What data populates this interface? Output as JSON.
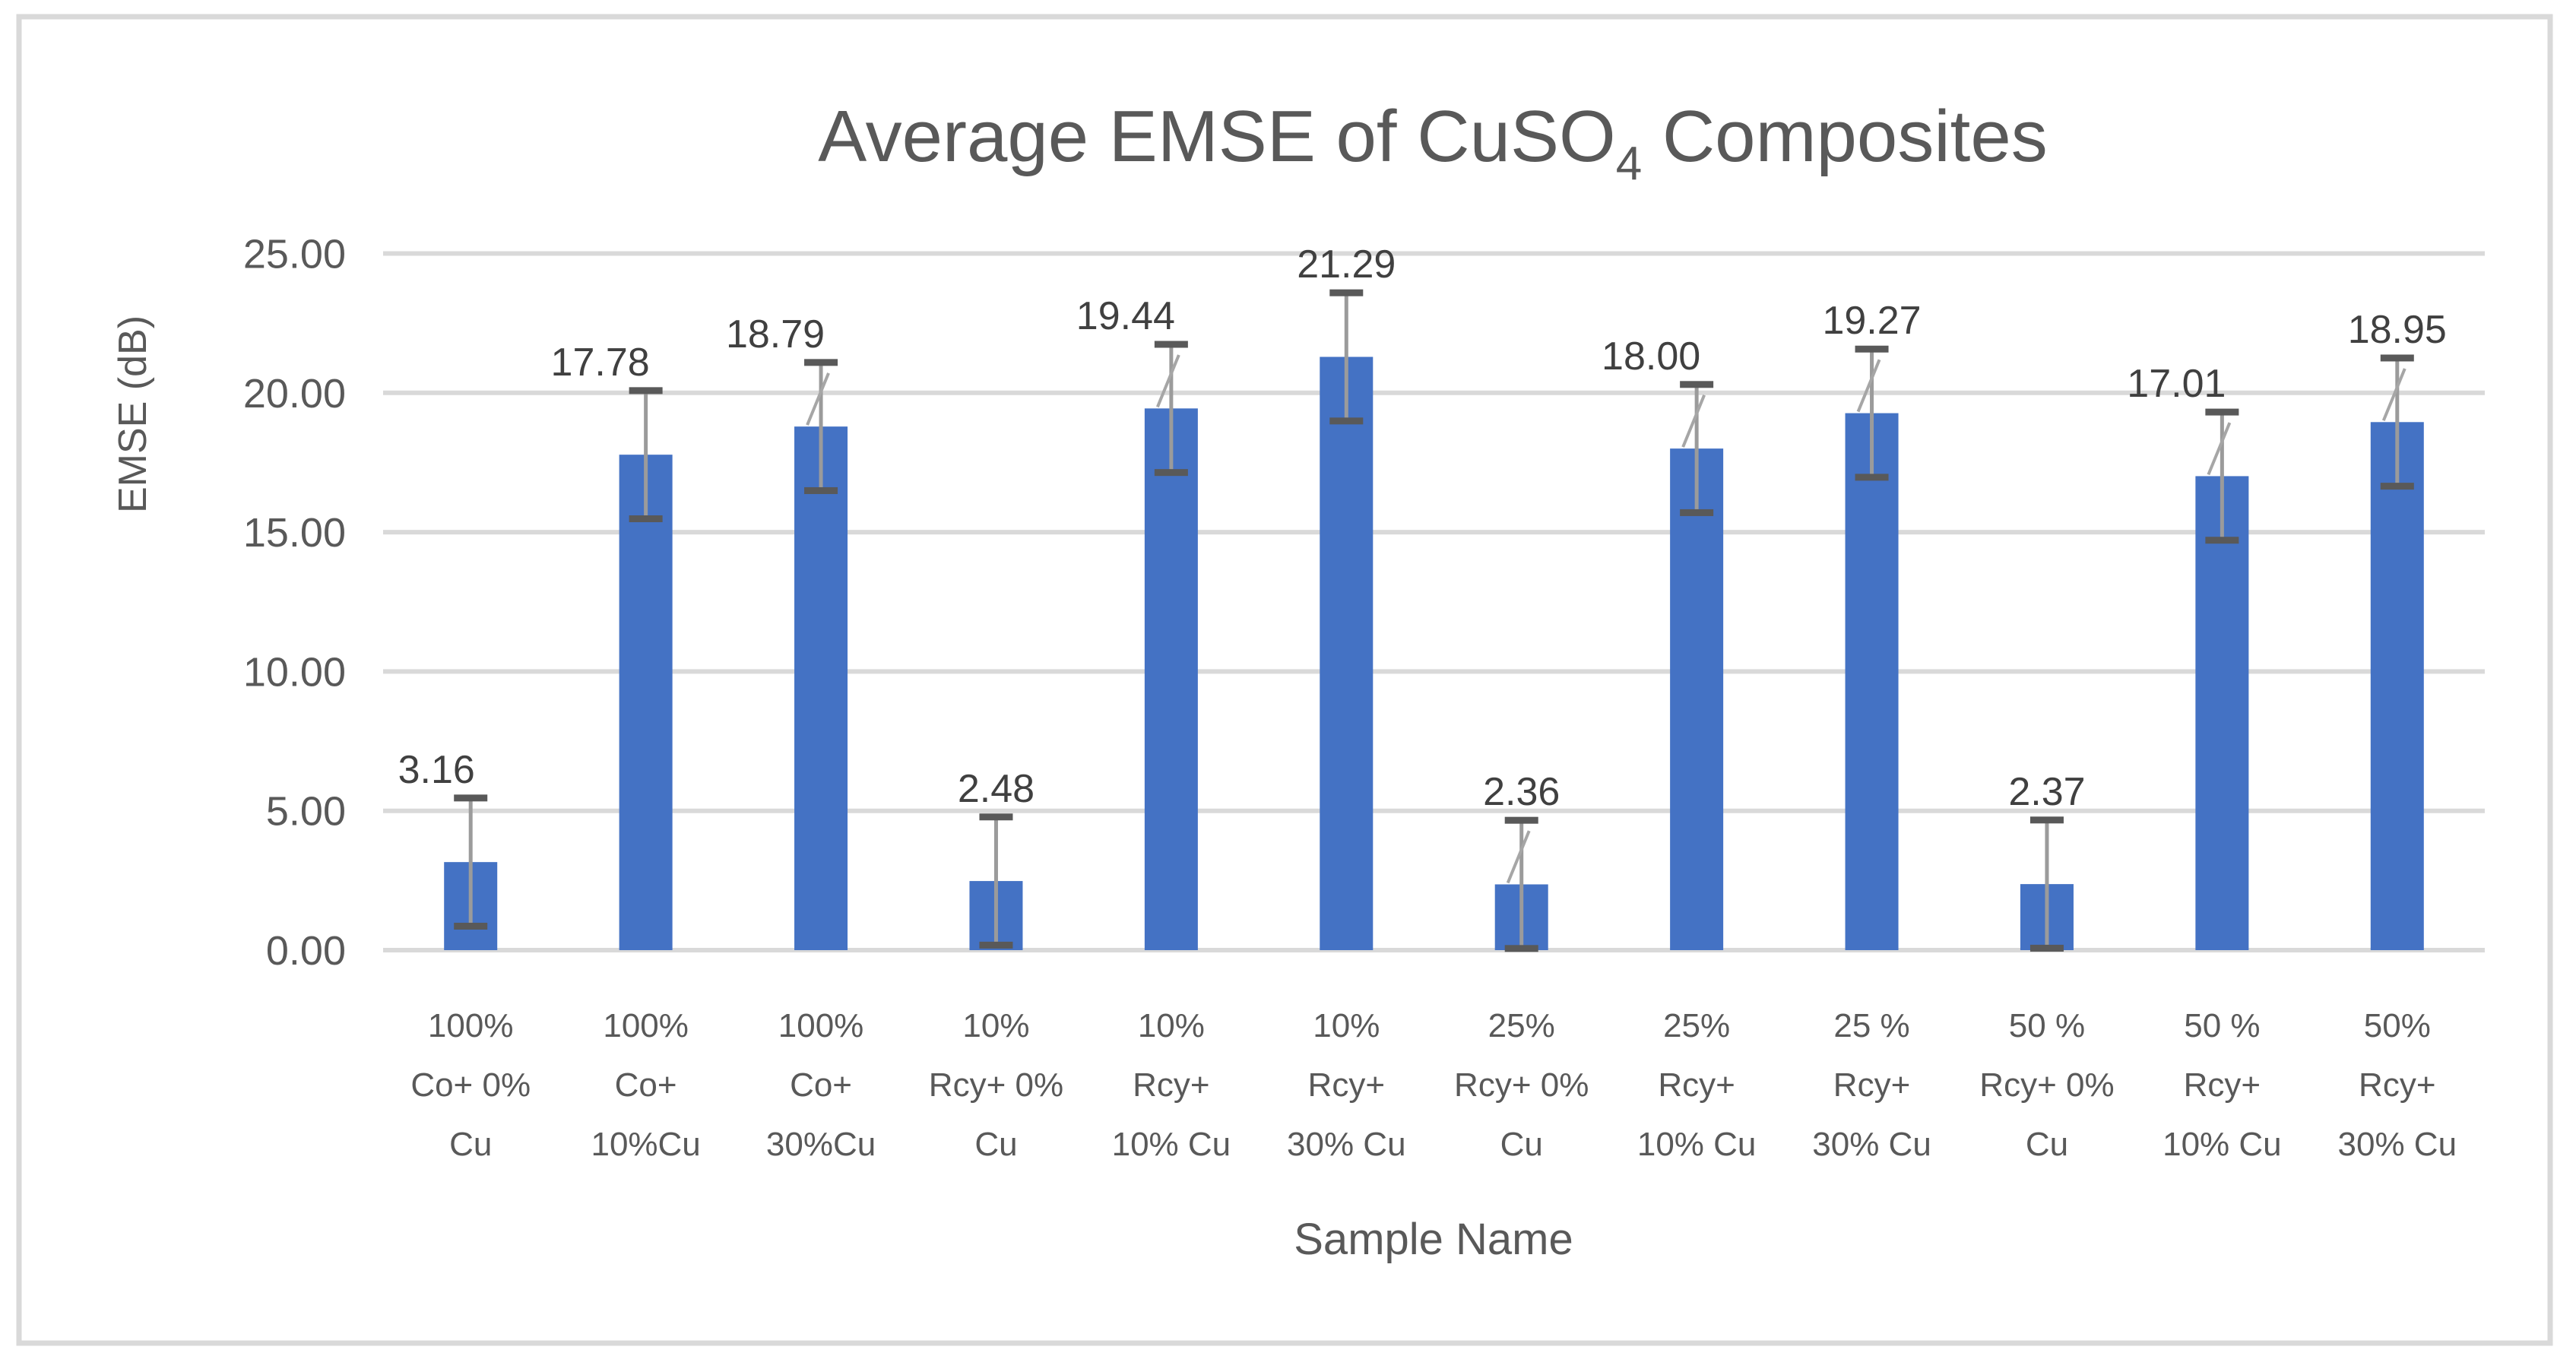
{
  "page": {
    "background_color": "#FFFFFF",
    "frame_border_color": "#D9D9D9"
  },
  "chart_data": {
    "type": "bar",
    "title": "Average EMSE of CuSO4 Composites",
    "title_parts": {
      "pre": "Average EMSE of CuSO",
      "sub": "4",
      "post": " Composites"
    },
    "xlabel": "Sample Name",
    "ylabel": "EMSE (dB)",
    "ylim": [
      0,
      25
    ],
    "y_tick_step": 5,
    "y_ticks": [
      "0.00",
      "5.00",
      "10.00",
      "15.00",
      "20.00",
      "25.00"
    ],
    "grid": true,
    "legend": "none",
    "bar_color": "#4472C4",
    "gridline_color": "#D9D9D9",
    "text_color": "#595959",
    "data_label_color": "#404040",
    "error_bar_line_color": "#9B9B9B",
    "error_bar_cap_color": "#595959",
    "leader_line_color": "#A6A6A6",
    "error_plus_minus": 2.3,
    "categories": [
      "100% Co+ 0% Cu",
      "100% Co+ 10%Cu",
      "100% Co+ 30%Cu",
      "10% Rcy+ 0% Cu",
      "10% Rcy+ 10% Cu",
      "10% Rcy+ 30% Cu",
      "25% Rcy+ 0% Cu",
      "25% Rcy+ 10% Cu",
      "25 % Rcy+ 30% Cu",
      "50 % Rcy+ 0% Cu",
      "50 % Rcy+ 10% Cu",
      "50% Rcy+ 30% Cu"
    ],
    "category_lines": [
      [
        "100%",
        "Co+ 0%",
        "Cu"
      ],
      [
        "100%",
        "Co+",
        "10%Cu"
      ],
      [
        "100%",
        "Co+",
        "30%Cu"
      ],
      [
        "10%",
        "Rcy+ 0%",
        "Cu"
      ],
      [
        "10%",
        "Rcy+",
        "10% Cu"
      ],
      [
        "10%",
        "Rcy+",
        "30% Cu"
      ],
      [
        "25%",
        "Rcy+ 0%",
        "Cu"
      ],
      [
        "25%",
        "Rcy+",
        "10% Cu"
      ],
      [
        "25 %",
        "Rcy+",
        "30% Cu"
      ],
      [
        "50 %",
        "Rcy+ 0%",
        "Cu"
      ],
      [
        "50 %",
        "Rcy+",
        "10% Cu"
      ],
      [
        "50%",
        "Rcy+",
        "30% Cu"
      ]
    ],
    "values": [
      3.16,
      17.78,
      18.79,
      2.48,
      19.44,
      21.29,
      2.36,
      18.0,
      19.27,
      2.37,
      17.01,
      18.95
    ],
    "value_labels": [
      "3.16",
      "17.78",
      "18.79",
      "2.48",
      "19.44",
      "21.29",
      "2.36",
      "18.00",
      "19.27",
      "2.37",
      "17.01",
      "18.95"
    ],
    "leader_line_indices": [
      2,
      4,
      6,
      7,
      8,
      10,
      11
    ]
  }
}
